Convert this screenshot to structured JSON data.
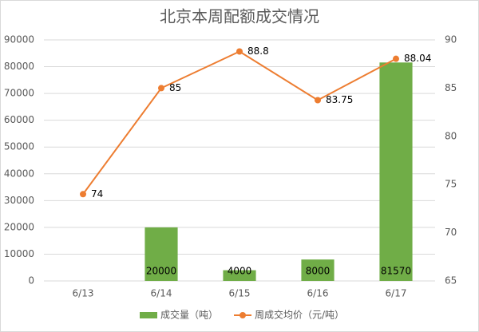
{
  "chart_data": {
    "type": "combo",
    "title": "北京本周配额成交情况",
    "categories": [
      "6/13",
      "6/14",
      "6/15",
      "6/16",
      "6/17"
    ],
    "series": [
      {
        "name": "成交量（吨）",
        "type": "bar",
        "color": "#70ad47",
        "values": [
          null,
          20000,
          4000,
          8000,
          81570
        ]
      },
      {
        "name": "周成交均价（元/吨）",
        "type": "line",
        "axis": "y2",
        "color": "#ed7d31",
        "values": [
          74,
          85,
          88.8,
          83.75,
          88.04
        ]
      }
    ],
    "ylim": [
      0,
      90000
    ],
    "yticks": [
      0,
      10000,
      20000,
      30000,
      40000,
      50000,
      60000,
      70000,
      80000,
      90000
    ],
    "y2lim": [
      65,
      90
    ],
    "y2ticks": [
      65,
      70,
      75,
      80,
      85,
      90
    ],
    "grid": true,
    "legend": "bottom"
  }
}
